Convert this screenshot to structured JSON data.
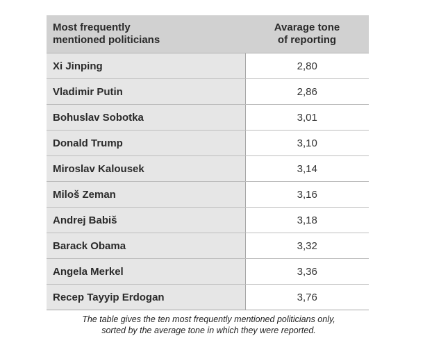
{
  "table": {
    "header": {
      "col1_line1": "Most frequently",
      "col1_line2": "mentioned politicians",
      "col2_line1": "Avarage tone",
      "col2_line2": "of reporting"
    },
    "rows": [
      {
        "name": "Xi Jinping",
        "tone": "2,80"
      },
      {
        "name": "Vladimir Putin",
        "tone": "2,86"
      },
      {
        "name": "Bohuslav Sobotka",
        "tone": "3,01"
      },
      {
        "name": "Donald Trump",
        "tone": "3,10"
      },
      {
        "name": "Miroslav Kalousek",
        "tone": "3,14"
      },
      {
        "name": "Miloš Zeman",
        "tone": "3,16"
      },
      {
        "name": "Andrej Babiš",
        "tone": "3,18"
      },
      {
        "name": "Barack Obama",
        "tone": "3,32"
      },
      {
        "name": "Angela Merkel",
        "tone": "3,36"
      },
      {
        "name": "Recep Tayyip Erdogan",
        "tone": "3,76"
      }
    ]
  },
  "caption": {
    "line1": "The table gives the ten most frequently mentioned politicians only,",
    "line2": "sorted by the average tone in which they were reported."
  }
}
